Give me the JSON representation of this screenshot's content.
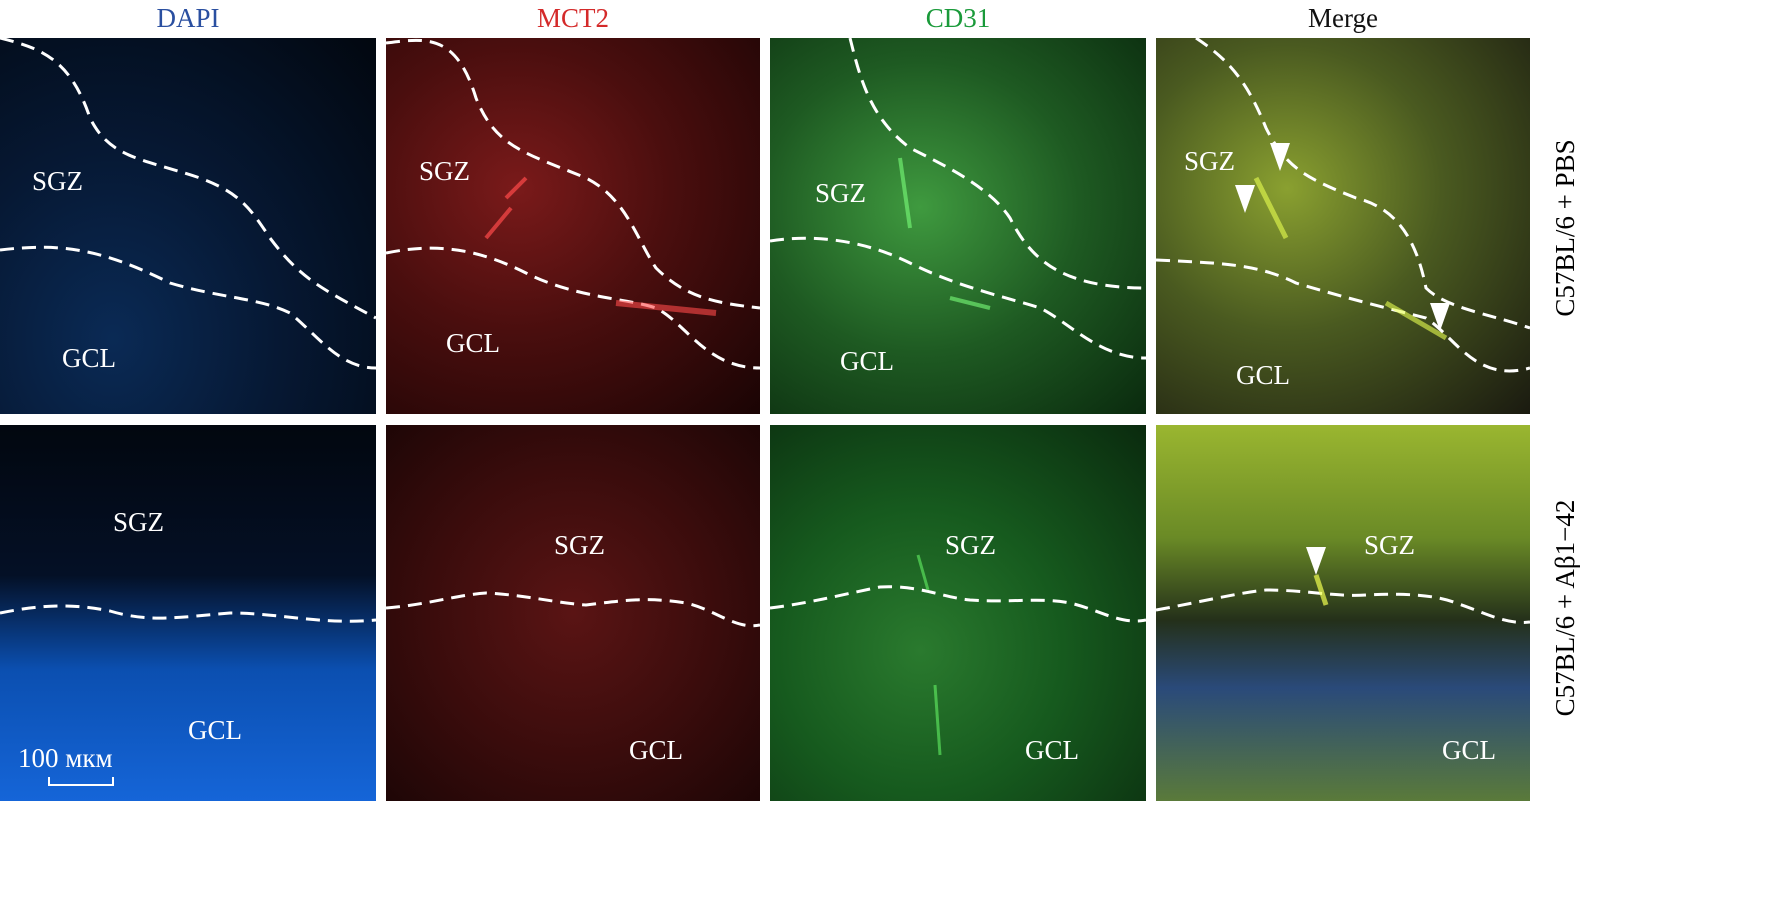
{
  "columns": [
    {
      "label": "DAPI",
      "color": "#2a4fa0"
    },
    {
      "label": "MCT2",
      "color": "#d42a2a"
    },
    {
      "label": "CD31",
      "color": "#1a9a3a"
    },
    {
      "label": "Merge",
      "color": "#111111"
    }
  ],
  "rows": [
    {
      "label": "C57BL/6 + PBS"
    },
    {
      "label": "C57BL/6 + Aβ1−42"
    }
  ],
  "regions": {
    "sgz": "SGZ",
    "gcl": "GCL"
  },
  "scale_bar": {
    "label": "100 мкм"
  }
}
